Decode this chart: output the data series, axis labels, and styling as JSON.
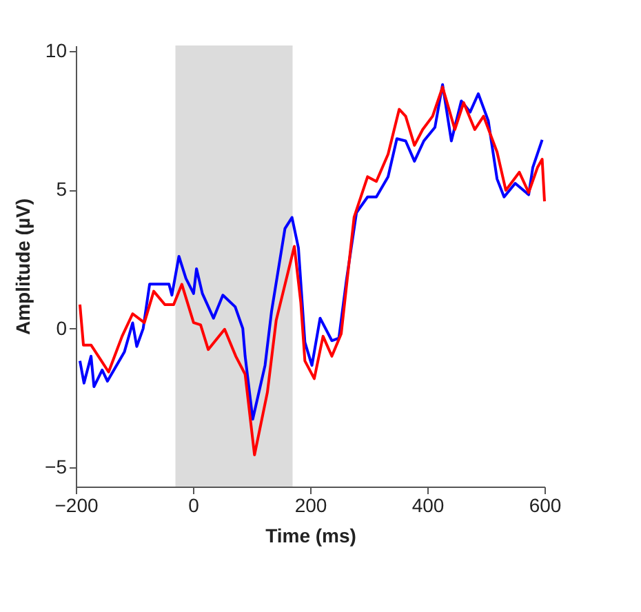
{
  "chart_data": {
    "type": "line",
    "xlabel": "Time (ms)",
    "ylabel": "Amplitude (µV)",
    "xlim": [
      -200,
      600
    ],
    "xticks": [
      -200,
      0,
      200,
      400,
      600
    ],
    "ylim": [
      -5.7,
      10.2
    ],
    "yticks": [
      -5,
      0,
      5,
      10
    ],
    "grid": false,
    "line_style": "solid",
    "marker": "none",
    "bands": [
      {
        "axis": "x",
        "from": -30,
        "to": 170,
        "color": "#dcdcdc"
      }
    ],
    "series": [
      {
        "color": "#0000ff",
        "x": [
          -193,
          -186,
          -174,
          -169,
          -155,
          -146,
          -117,
          -103,
          -96,
          -85,
          -74,
          -41,
          -36,
          -24,
          -12,
          1,
          6,
          16,
          35,
          51,
          72,
          85,
          89,
          102,
          123,
          134,
          157,
          169,
          180,
          191,
          203,
          217,
          237,
          249,
          262,
          279,
          298,
          313,
          333,
          348,
          363,
          378,
          394,
          413,
          426,
          441,
          458,
          473,
          487,
          504,
          519,
          531,
          550,
          573,
          580,
          596
        ],
        "values": [
          -1.17,
          -1.97,
          -1.0,
          -2.1,
          -1.5,
          -1.9,
          -0.84,
          0.2,
          -0.65,
          0,
          1.6,
          1.6,
          1.2,
          2.6,
          1.8,
          1.26,
          2.15,
          1.26,
          0.37,
          1.2,
          0.78,
          0,
          -1.0,
          -3.27,
          -1.33,
          0.6,
          3.6,
          4.0,
          2.9,
          -0.5,
          -1.33,
          0.37,
          -0.44,
          -0.35,
          1.75,
          4.17,
          4.74,
          4.74,
          5.47,
          6.84,
          6.76,
          6.03,
          6.76,
          7.25,
          8.79,
          6.76,
          8.2,
          7.8,
          8.46,
          7.49,
          5.39,
          4.74,
          5.23,
          4.82,
          5.8,
          6.8
        ]
      },
      {
        "color": "#ff0000",
        "x": [
          -193,
          -187,
          -174,
          -159,
          -144,
          -121,
          -103,
          -83,
          -67,
          -48,
          -33,
          -19,
          1,
          13,
          26,
          54,
          73,
          89,
          105,
          127,
          142,
          173,
          184,
          191,
          207,
          222,
          237,
          253,
          275,
          298,
          313,
          333,
          352,
          363,
          378,
          392,
          409,
          426,
          447,
          462,
          481,
          496,
          519,
          534,
          557,
          573,
          588,
          596,
          600
        ],
        "values": [
          0.86,
          -0.6,
          -0.6,
          -1.08,
          -1.57,
          -0.28,
          0.53,
          0.21,
          1.34,
          0.86,
          0.86,
          1.59,
          0.21,
          0.13,
          -0.76,
          -0.03,
          -1.0,
          -1.65,
          -4.56,
          -2.3,
          0.29,
          2.96,
          0.94,
          -1.17,
          -1.81,
          -0.28,
          -1.0,
          -0.19,
          4.01,
          5.47,
          5.3,
          6.28,
          7.9,
          7.65,
          6.6,
          7.17,
          7.65,
          8.7,
          7.17,
          8.14,
          7.17,
          7.65,
          6.36,
          4.98,
          5.63,
          4.9,
          5.8,
          6.1,
          4.58
        ]
      }
    ]
  }
}
